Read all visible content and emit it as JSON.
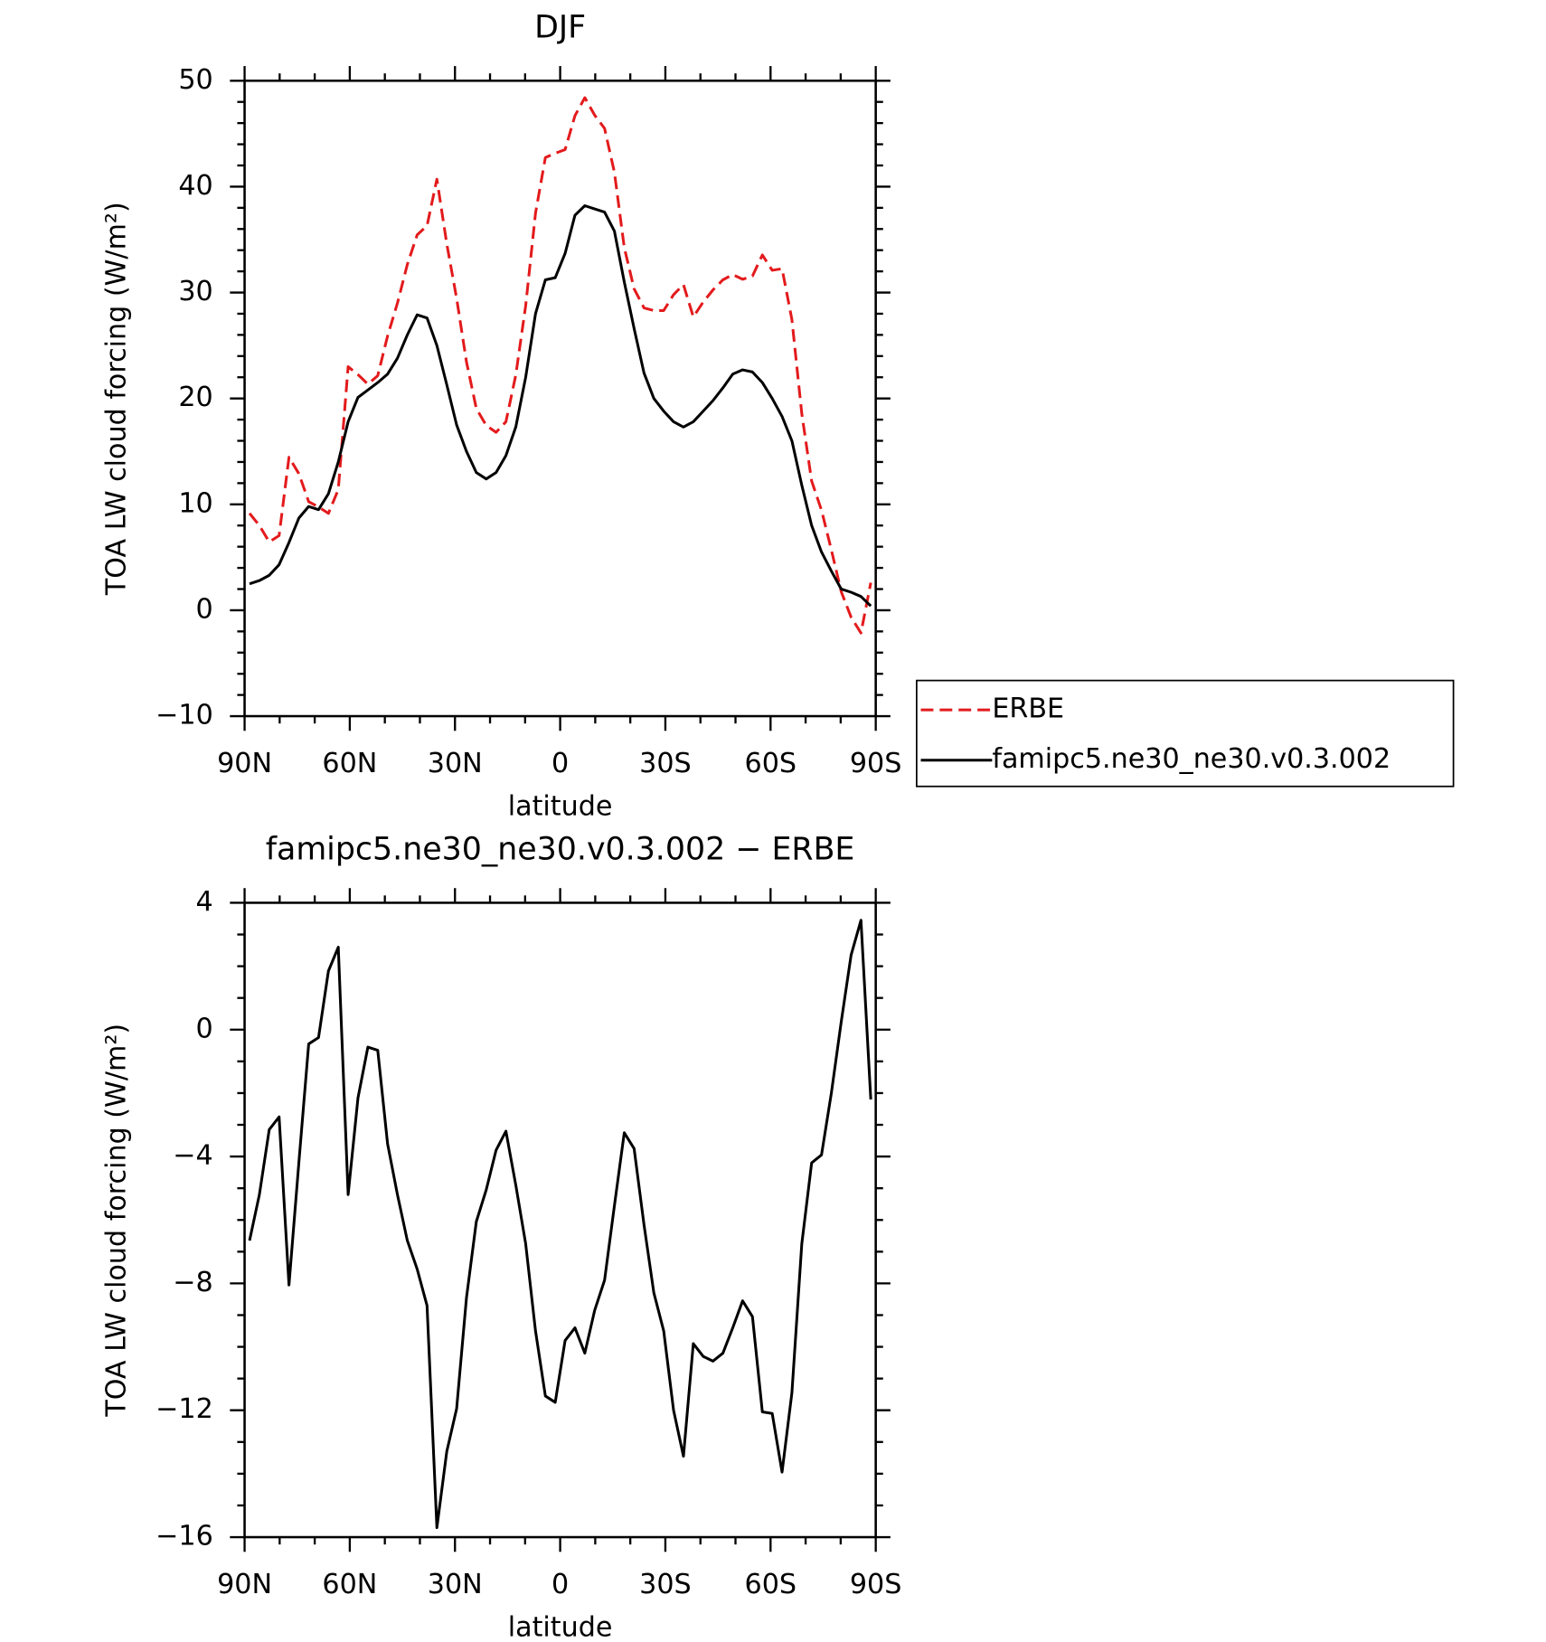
{
  "chart_data": [
    {
      "type": "line",
      "title": "DJF",
      "xlabel": "latitude",
      "ylabel": "TOA LW cloud forcing (W/m²)",
      "xlim": [
        90,
        -90
      ],
      "xticks": [
        {
          "value": 90,
          "label": "90N"
        },
        {
          "value": 60,
          "label": "60N"
        },
        {
          "value": 30,
          "label": "30N"
        },
        0,
        {
          "value": -30,
          "label": "30S"
        },
        {
          "value": -60,
          "label": "60S"
        },
        {
          "value": -90,
          "label": "90S"
        }
      ],
      "xticks_minor": [
        80,
        70,
        50,
        40,
        20,
        10,
        -10,
        -20,
        -40,
        -50,
        -70,
        -80
      ],
      "ylim": [
        -10,
        50
      ],
      "yticks": [
        {
          "value": -10,
          "label": "−10"
        },
        0,
        10,
        20,
        30,
        40,
        50
      ],
      "yticks_minor": [
        -8,
        -6,
        -4,
        -2,
        2,
        4,
        6,
        8,
        12,
        14,
        16,
        18,
        22,
        24,
        26,
        28,
        32,
        34,
        36,
        38,
        42,
        44,
        46,
        48
      ],
      "legend": "right",
      "x": [
        88.59,
        85.78,
        82.97,
        80.16,
        77.34,
        74.53,
        71.72,
        68.91,
        66.09,
        63.28,
        60.47,
        57.66,
        54.84,
        52.03,
        49.22,
        46.41,
        43.59,
        40.78,
        37.97,
        35.16,
        32.34,
        29.53,
        26.72,
        23.91,
        21.09,
        18.28,
        15.47,
        12.66,
        9.84,
        7.03,
        4.22,
        1.41,
        -1.41,
        -4.22,
        -7.03,
        -9.84,
        -12.66,
        -15.47,
        -18.28,
        -21.09,
        -23.91,
        -26.72,
        -29.53,
        -32.34,
        -35.16,
        -37.97,
        -40.78,
        -43.59,
        -46.41,
        -49.22,
        -52.03,
        -54.84,
        -57.66,
        -60.47,
        -63.28,
        -66.09,
        -68.91,
        -71.72,
        -74.53,
        -77.34,
        -80.16,
        -82.97,
        -85.78,
        -88.59
      ],
      "series": [
        {
          "name": "ERBE",
          "color": "#e31a1c",
          "dash": true,
          "values": [
            9.15,
            8.0,
            6.45,
            7.05,
            14.45,
            12.9,
            10.25,
            9.75,
            9.15,
            11.4,
            23.0,
            22.25,
            21.35,
            22.15,
            25.9,
            29.0,
            32.65,
            35.45,
            36.3,
            40.7,
            34.6,
            29.45,
            23.45,
            19.05,
            17.45,
            16.8,
            17.8,
            22.2,
            28.75,
            37.5,
            42.75,
            43.15,
            43.5,
            46.7,
            48.4,
            46.75,
            45.5,
            41.35,
            34.25,
            30.35,
            28.55,
            28.3,
            28.3,
            29.8,
            30.75,
            27.7,
            29.1,
            30.25,
            31.2,
            31.7,
            31.25,
            31.55,
            33.55,
            32.1,
            32.25,
            27.45,
            18.55,
            12.2,
            9.45,
            5.7,
            1.75,
            -0.65,
            -2.15,
            2.6
          ]
        },
        {
          "name": "famipc5.ne30_ne30.v0.3.002",
          "color": "#000000",
          "dash": false,
          "values": [
            2.5,
            2.8,
            3.3,
            4.3,
            6.4,
            8.7,
            9.8,
            9.5,
            11.0,
            14.0,
            17.8,
            20.1,
            20.8,
            21.5,
            22.3,
            23.8,
            26.0,
            27.9,
            27.6,
            25.0,
            21.3,
            17.5,
            15.0,
            13.0,
            12.4,
            13.0,
            14.6,
            17.3,
            22.0,
            28.0,
            31.2,
            31.4,
            33.7,
            37.3,
            38.2,
            37.9,
            37.6,
            35.8,
            31.0,
            26.6,
            22.4,
            20.0,
            18.8,
            17.8,
            17.3,
            17.8,
            18.8,
            19.8,
            21.0,
            22.3,
            22.7,
            22.5,
            21.5,
            20.0,
            18.3,
            16.0,
            11.8,
            8.0,
            5.5,
            3.7,
            2.0,
            1.7,
            1.3,
            0.4
          ]
        }
      ]
    },
    {
      "type": "line",
      "title": "famipc5.ne30_ne30.v0.3.002 − ERBE",
      "xlabel": "latitude",
      "ylabel": "TOA LW cloud forcing (W/m²)",
      "xlim": [
        90,
        -90
      ],
      "xticks": [
        {
          "value": 90,
          "label": "90N"
        },
        {
          "value": 60,
          "label": "60N"
        },
        {
          "value": 30,
          "label": "30N"
        },
        0,
        {
          "value": -30,
          "label": "30S"
        },
        {
          "value": -60,
          "label": "60S"
        },
        {
          "value": -90,
          "label": "90S"
        }
      ],
      "xticks_minor": [
        80,
        70,
        50,
        40,
        20,
        10,
        -10,
        -20,
        -40,
        -50,
        -70,
        -80
      ],
      "ylim": [
        -16,
        4
      ],
      "yticks": [
        {
          "value": -16,
          "label": "−16"
        },
        {
          "value": -12,
          "label": "−12"
        },
        {
          "value": -8,
          "label": "−8"
        },
        {
          "value": -4,
          "label": "−4"
        },
        0,
        4
      ],
      "yticks_minor": [
        -15,
        -14,
        -13,
        -11,
        -10,
        -9,
        -7,
        -6,
        -5,
        -3,
        -2,
        -1,
        1,
        2,
        3
      ],
      "color": "#000000",
      "x": [
        88.59,
        85.78,
        82.97,
        80.16,
        77.34,
        74.53,
        71.72,
        68.91,
        66.09,
        63.28,
        60.47,
        57.66,
        54.84,
        52.03,
        49.22,
        46.41,
        43.59,
        40.78,
        37.97,
        35.16,
        32.34,
        29.53,
        26.72,
        23.91,
        21.09,
        18.28,
        15.47,
        12.66,
        9.84,
        7.03,
        4.22,
        1.41,
        -1.41,
        -4.22,
        -7.03,
        -9.84,
        -12.66,
        -15.47,
        -18.28,
        -21.09,
        -23.91,
        -26.72,
        -29.53,
        -32.34,
        -35.16,
        -37.97,
        -40.78,
        -43.59,
        -46.41,
        -49.22,
        -52.03,
        -54.84,
        -57.66,
        -60.47,
        -63.28,
        -66.09,
        -68.91,
        -71.72,
        -74.53,
        -77.34,
        -80.16,
        -82.97,
        -85.78,
        -88.59
      ],
      "values": [
        -6.65,
        -5.2,
        -3.15,
        -2.75,
        -8.05,
        -4.2,
        -0.45,
        -0.25,
        1.85,
        2.6,
        -5.2,
        -2.15,
        -0.55,
        -0.65,
        -3.6,
        -5.2,
        -6.65,
        -7.55,
        -8.7,
        -15.7,
        -13.3,
        -11.95,
        -8.45,
        -6.05,
        -5.05,
        -3.8,
        -3.2,
        -4.9,
        -6.75,
        -9.5,
        -11.55,
        -11.75,
        -9.8,
        -9.4,
        -10.2,
        -8.85,
        -7.9,
        -5.55,
        -3.25,
        -3.75,
        -6.15,
        -8.3,
        -9.5,
        -12.0,
        -13.45,
        -9.9,
        -10.3,
        -10.45,
        -10.2,
        -9.4,
        -8.55,
        -9.05,
        -12.05,
        -12.1,
        -13.95,
        -11.45,
        -6.75,
        -4.2,
        -3.95,
        -2.0,
        0.25,
        2.35,
        3.45,
        -2.2
      ]
    }
  ]
}
